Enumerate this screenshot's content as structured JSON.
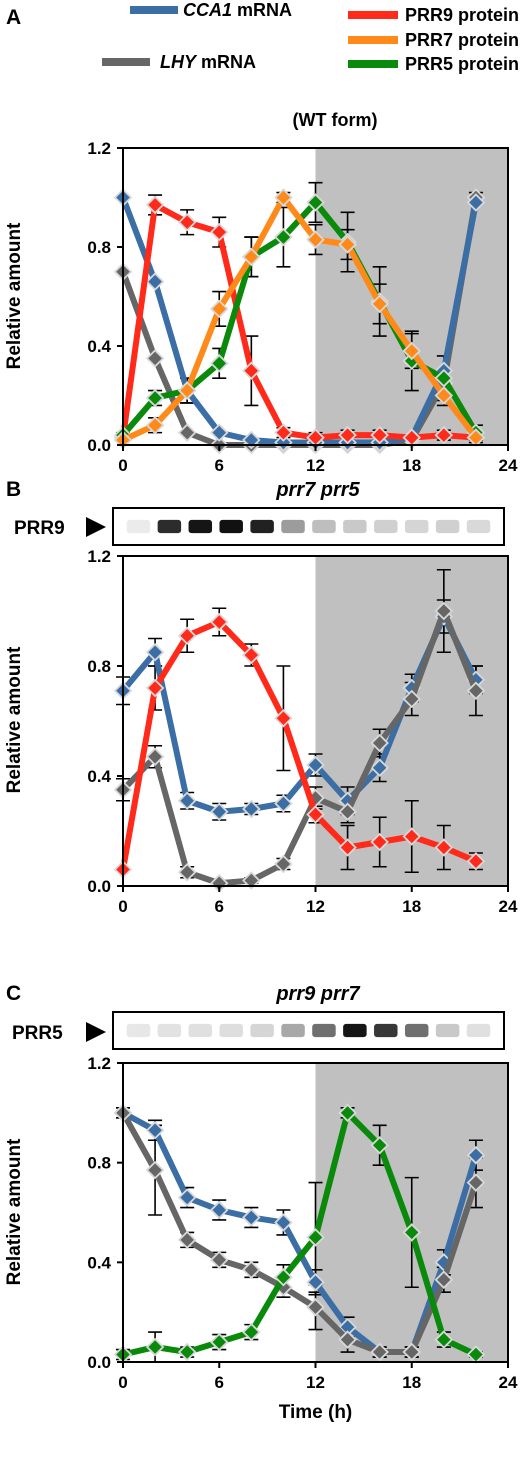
{
  "legend": {
    "items": [
      {
        "italic": "CCA1",
        "text": " mRNA",
        "color": "#3a6ea5"
      },
      {
        "italic": "LHY",
        "text": " mRNA",
        "color": "#666666"
      },
      {
        "italic": "",
        "text": "PRR9 protein",
        "color": "#ff2a1a"
      },
      {
        "italic": "",
        "text": "PRR7 protein",
        "color": "#ff8a1a"
      },
      {
        "italic": "",
        "text": "PRR5 protein",
        "color": "#0a8a0a"
      }
    ]
  },
  "blots": [
    {
      "label": "PRR9",
      "intensities": [
        0.0,
        0.85,
        0.95,
        0.97,
        0.9,
        0.35,
        0.2,
        0.15,
        0.12,
        0.1,
        0.12,
        0.08
      ]
    },
    {
      "label": "PRR5",
      "intensities": [
        0.02,
        0.04,
        0.05,
        0.06,
        0.1,
        0.3,
        0.55,
        0.95,
        0.8,
        0.55,
        0.15,
        0.05
      ]
    }
  ],
  "chart_data": [
    {
      "panel": "A",
      "type": "line",
      "title": "(WT  form)",
      "xlabel": "",
      "ylabel": "Relative amount",
      "xlim": [
        0,
        24
      ],
      "ylim": [
        0,
        1.2
      ],
      "xticks": [
        "0",
        "6",
        "12",
        "18",
        "24"
      ],
      "yticks": [
        "0.0",
        "0.4",
        "0.8",
        "1.2"
      ],
      "dark_from": 12,
      "x": [
        0,
        2,
        4,
        6,
        8,
        10,
        12,
        14,
        16,
        18,
        20,
        22
      ],
      "series": [
        {
          "name": "LHY mRNA",
          "color": "#666666",
          "values": [
            0.7,
            0.35,
            0.05,
            0.0,
            0.0,
            0.0,
            0.0,
            0.0,
            0.0,
            0.02,
            0.25,
            1.0
          ],
          "err": [
            0,
            0,
            0,
            0,
            0,
            0,
            0,
            0,
            0,
            0,
            0,
            0.02
          ]
        },
        {
          "name": "CCA1 mRNA",
          "color": "#3a6ea5",
          "values": [
            1.0,
            0.66,
            0.22,
            0.05,
            0.02,
            0.01,
            0.01,
            0.01,
            0.01,
            0.03,
            0.3,
            0.98
          ],
          "err": [
            0,
            0,
            0,
            0,
            0,
            0,
            0,
            0,
            0,
            0,
            0,
            0
          ]
        },
        {
          "name": "PRR9 protein",
          "color": "#ff2a1a",
          "values": [
            0.03,
            0.97,
            0.9,
            0.86,
            0.3,
            0.05,
            0.03,
            0.04,
            0.04,
            0.03,
            0.04,
            0.03
          ],
          "err": [
            0,
            0.04,
            0.05,
            0.06,
            0.14,
            0.02,
            0.02,
            0.02,
            0.02,
            0.01,
            0.02,
            0.01
          ]
        },
        {
          "name": "PRR5 protein",
          "color": "#0a8a0a",
          "values": [
            0.04,
            0.19,
            0.22,
            0.33,
            0.76,
            0.84,
            0.98,
            0.82,
            0.58,
            0.34,
            0.27,
            0.05
          ],
          "err": [
            0.01,
            0.03,
            0.05,
            0.06,
            0.08,
            0.12,
            0.08,
            0.12,
            0.14,
            0.12,
            0.09,
            0.03
          ]
        },
        {
          "name": "PRR7 protein",
          "color": "#ff8a1a",
          "values": [
            0.02,
            0.08,
            0.22,
            0.55,
            0.76,
            1.0,
            0.83,
            0.81,
            0.57,
            0.38,
            0.2,
            0.03
          ],
          "err": [
            0,
            0.03,
            0.05,
            0.07,
            0.08,
            0.02,
            0.06,
            0.06,
            0.08,
            0.07,
            0.04,
            0.02
          ]
        }
      ]
    },
    {
      "panel": "B",
      "type": "line",
      "title": "prr7 prr5",
      "xlabel": "",
      "ylabel": "Relative amount",
      "xlim": [
        0,
        24
      ],
      "ylim": [
        0,
        1.2
      ],
      "xticks": [
        "0",
        "6",
        "12",
        "18",
        "24"
      ],
      "yticks": [
        "0.0",
        "0.4",
        "0.8",
        "1.2"
      ],
      "dark_from": 12,
      "x": [
        0,
        2,
        4,
        6,
        8,
        10,
        12,
        14,
        16,
        18,
        20,
        22
      ],
      "series": [
        {
          "name": "CCA1 mRNA",
          "color": "#3a6ea5",
          "values": [
            0.71,
            0.85,
            0.31,
            0.27,
            0.28,
            0.3,
            0.44,
            0.31,
            0.43,
            0.72,
            0.98,
            0.75
          ],
          "err": [
            0.05,
            0.05,
            0.03,
            0.03,
            0.02,
            0.03,
            0.04,
            0.05,
            0.05,
            0.05,
            0.06,
            0.05
          ]
        },
        {
          "name": "LHY mRNA",
          "color": "#666666",
          "values": [
            0.35,
            0.47,
            0.05,
            0.01,
            0.02,
            0.08,
            0.32,
            0.27,
            0.52,
            0.68,
            1.0,
            0.71
          ],
          "err": [
            0.04,
            0.04,
            0.02,
            0.01,
            0.01,
            0.02,
            0.04,
            0.04,
            0.05,
            0.06,
            0.15,
            0.09
          ]
        },
        {
          "name": "PRR9 protein",
          "color": "#ff2a1a",
          "values": [
            0.06,
            0.72,
            0.91,
            0.96,
            0.84,
            0.61,
            0.26,
            0.14,
            0.16,
            0.18,
            0.14,
            0.09
          ],
          "err": [
            0,
            0.08,
            0.06,
            0.05,
            0.04,
            0.19,
            0.03,
            0.08,
            0.09,
            0.13,
            0.08,
            0.03
          ]
        }
      ]
    },
    {
      "panel": "C",
      "type": "line",
      "title": "prr9 prr7",
      "xlabel": "Time (h)",
      "ylabel": "Relative amount",
      "xlim": [
        0,
        24
      ],
      "ylim": [
        0,
        1.2
      ],
      "xticks": [
        "0",
        "6",
        "12",
        "18",
        "24"
      ],
      "yticks": [
        "0.0",
        "0.4",
        "0.8",
        "1.2"
      ],
      "dark_from": 12,
      "x": [
        0,
        2,
        4,
        6,
        8,
        10,
        12,
        14,
        16,
        18,
        20,
        22
      ],
      "series": [
        {
          "name": "CCA1 mRNA",
          "color": "#3a6ea5",
          "values": [
            1.0,
            0.93,
            0.66,
            0.61,
            0.58,
            0.56,
            0.32,
            0.14,
            0.04,
            0.04,
            0.4,
            0.83
          ],
          "err": [
            0.02,
            0.04,
            0.04,
            0.04,
            0.04,
            0.05,
            0.05,
            0.04,
            0.02,
            0.02,
            0.05,
            0.06
          ]
        },
        {
          "name": "LHY mRNA",
          "color": "#666666",
          "values": [
            1.0,
            0.77,
            0.49,
            0.41,
            0.37,
            0.3,
            0.22,
            0.09,
            0.04,
            0.04,
            0.33,
            0.72
          ],
          "err": [
            0.02,
            0.18,
            0.03,
            0.03,
            0.03,
            0.04,
            0.09,
            0.05,
            0.02,
            0.02,
            0.05,
            0.1
          ]
        },
        {
          "name": "PRR5 protein",
          "color": "#0a8a0a",
          "values": [
            0.03,
            0.06,
            0.04,
            0.08,
            0.12,
            0.34,
            0.5,
            1.0,
            0.87,
            0.52,
            0.09,
            0.03
          ],
          "err": [
            0.02,
            0.06,
            0.02,
            0.03,
            0.03,
            0.05,
            0.22,
            0.02,
            0.08,
            0.22,
            0.03,
            0.01
          ]
        }
      ]
    }
  ]
}
